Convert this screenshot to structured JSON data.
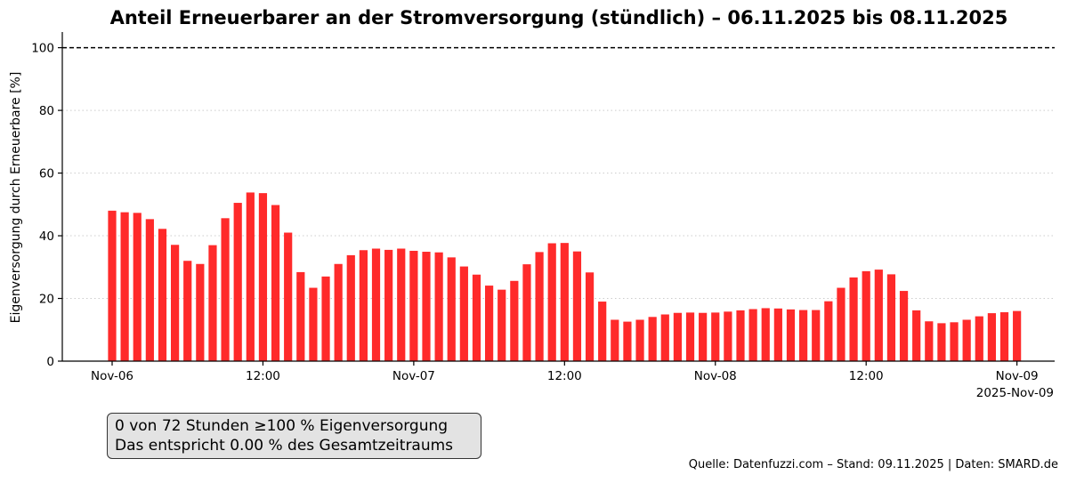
{
  "chart_data": {
    "type": "bar",
    "title": "Anteil Erneuerbarer an der Stromversorgung (stündlich) – 06.11.2025 bis 08.11.2025",
    "ylabel": "Eigenversorgung durch Erneuerbare [%]",
    "xlabel": "",
    "ylim": [
      0,
      105
    ],
    "yticks": [
      "0",
      "20",
      "40",
      "60",
      "80",
      "100"
    ],
    "xticks": [
      {
        "hour": 0,
        "label": "Nov-06"
      },
      {
        "hour": 12,
        "label": "12:00"
      },
      {
        "hour": 24,
        "label": "Nov-07"
      },
      {
        "hour": 36,
        "label": "12:00"
      },
      {
        "hour": 48,
        "label": "Nov-08"
      },
      {
        "hour": 60,
        "label": "12:00"
      },
      {
        "hour": 72,
        "label": "Nov-09"
      }
    ],
    "offset_label": "2025-Nov-09",
    "reference_line": {
      "value": 100,
      "style": "dashed",
      "color": "#000000"
    },
    "grid": "horizontal dotted",
    "bar_color": "#ff2a2a",
    "values": [
      48.0,
      47.5,
      47.3,
      45.3,
      42.2,
      37.1,
      32.0,
      31.0,
      37.0,
      45.6,
      50.5,
      53.8,
      53.6,
      49.8,
      41.0,
      28.4,
      23.4,
      27.0,
      31.0,
      33.8,
      35.4,
      35.9,
      35.5,
      35.9,
      35.2,
      34.9,
      34.7,
      33.1,
      30.2,
      27.6,
      24.1,
      22.8,
      25.6,
      30.9,
      34.8,
      37.6,
      37.7,
      35.0,
      28.3,
      19.0,
      13.2,
      12.6,
      13.2,
      14.1,
      14.9,
      15.4,
      15.5,
      15.4,
      15.5,
      15.8,
      16.2,
      16.6,
      16.9,
      16.8,
      16.5,
      16.3,
      16.3,
      19.1,
      23.4,
      26.7,
      28.7,
      29.2,
      27.7,
      22.4,
      16.2,
      12.7,
      12.1,
      12.4,
      13.2,
      14.3,
      15.3,
      15.6,
      16.0
    ]
  },
  "summary": {
    "line1": "0 von 72 Stunden ≥100 % Eigenversorgung",
    "line2": "Das entspricht 0.00 % des Gesamtzeitraums"
  },
  "source": "Quelle: Datenfuzzi.com – Stand: 09.11.2025 | Daten: SMARD.de",
  "colors": {
    "bar": "#ff2a2a",
    "summary_bg": "#e3e3e3",
    "grid": "#cccccc"
  }
}
